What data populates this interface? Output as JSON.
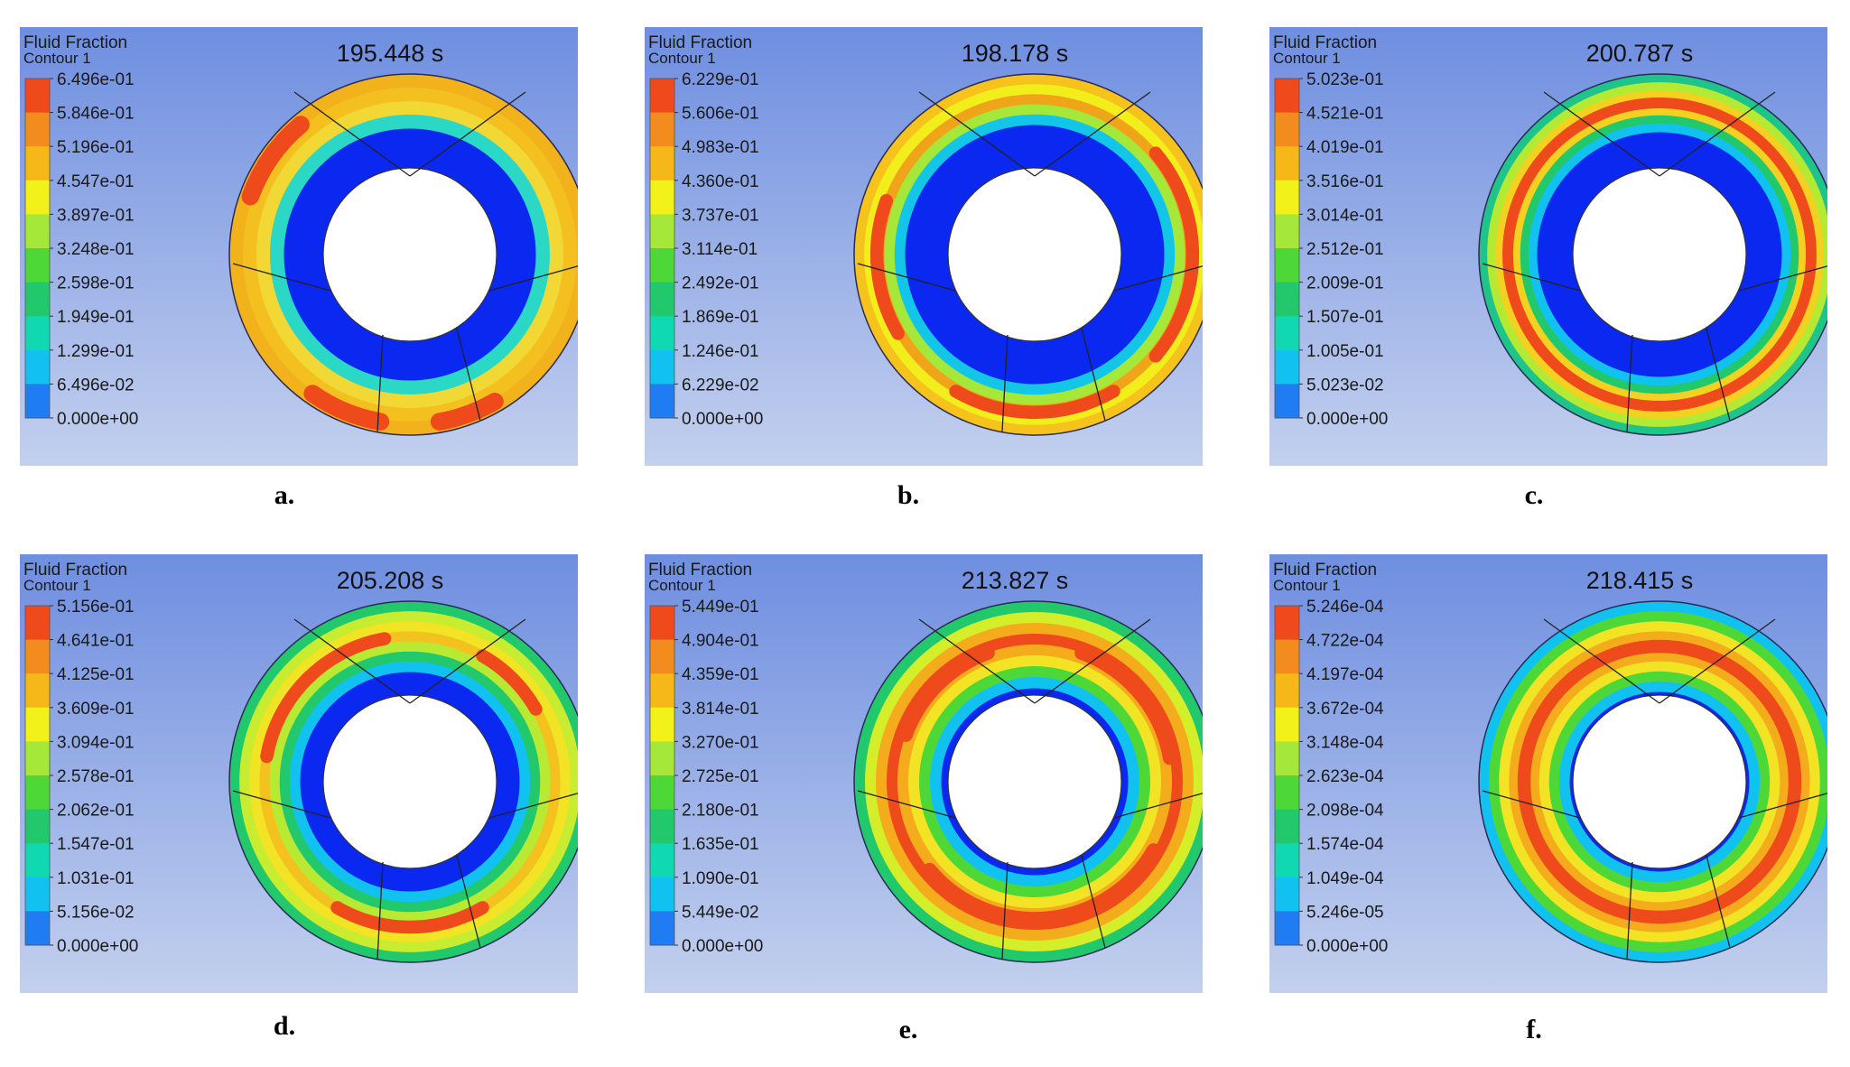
{
  "colors": {
    "bg_top": "#6e8ee0",
    "bg_bottom": "#c3d0ee",
    "scale": [
      "#0a28f0",
      "#1f7cf2",
      "#11c2f0",
      "#10d8b0",
      "#22c96c",
      "#4ed838",
      "#a6e83a",
      "#f2f21a",
      "#f6b818",
      "#f28c1e",
      "#ee4a1c"
    ]
  },
  "panels": [
    {
      "id": "a",
      "caption": "a.",
      "legend_title": "Fluid Fraction",
      "legend_subtitle": "Contour 1",
      "time": "195.448 s",
      "ticks": [
        "6.496e-01",
        "5.846e-01",
        "5.196e-01",
        "4.547e-01",
        "3.897e-01",
        "3.248e-01",
        "2.598e-01",
        "1.949e-01",
        "1.299e-01",
        "6.496e-02",
        "0.000e+00"
      ],
      "ring_colors": [
        "#f2b21c",
        "#f3c020",
        "#f2d834",
        "#2bd8c6"
      ],
      "hotspots_color": "#ee4a1c",
      "inner_band_color": "#2bd8c6"
    },
    {
      "id": "b",
      "caption": "b.",
      "legend_title": "Fluid Fraction",
      "legend_subtitle": "Contour 1",
      "time": "198.178 s",
      "ticks": [
        "6.229e-01",
        "5.606e-01",
        "4.983e-01",
        "4.360e-01",
        "3.737e-01",
        "3.114e-01",
        "2.492e-01",
        "1.869e-01",
        "1.246e-01",
        "6.229e-02",
        "0.000e+00"
      ],
      "ring_colors": [
        "#f6c21c",
        "#f2ee1c",
        "#f0a41a",
        "#a6e83a",
        "#13c6e8"
      ],
      "hotspots_color": "#ee4a1c",
      "inner_band_color": "#13c6e8"
    },
    {
      "id": "c",
      "caption": "c.",
      "legend_title": "Fluid Fraction",
      "legend_subtitle": "Contour 1",
      "time": "200.787 s",
      "ticks": [
        "5.023e-01",
        "4.521e-01",
        "4.019e-01",
        "3.516e-01",
        "3.014e-01",
        "2.512e-01",
        "2.009e-01",
        "1.507e-01",
        "1.005e-01",
        "5.023e-02",
        "0.000e+00"
      ],
      "ring_colors": [
        "#1fc48a",
        "#b4ea34",
        "#f4d020",
        "#ee4a1c",
        "#f4d020",
        "#22c96c",
        "#11c2f0"
      ],
      "hotspots_color": "#ee4a1c",
      "inner_band_color": "#11c2f0"
    },
    {
      "id": "d",
      "caption": "d.",
      "legend_title": "Fluid Fraction",
      "legend_subtitle": "Contour 1",
      "time": "205.208 s",
      "ticks": [
        "5.156e-01",
        "4.641e-01",
        "4.125e-01",
        "3.609e-01",
        "3.094e-01",
        "2.578e-01",
        "2.062e-01",
        "1.547e-01",
        "1.031e-01",
        "5.156e-02",
        "0.000e+00"
      ],
      "ring_colors": [
        "#22c96c",
        "#c8ec30",
        "#f2e424",
        "#f4c21e",
        "#b8ea34",
        "#22c96c",
        "#11c2f0"
      ],
      "hotspots_color": "#ee4a1c",
      "inner_band_color": "#11c2f0"
    },
    {
      "id": "e",
      "caption": "e.",
      "legend_title": "Fluid Fraction",
      "legend_subtitle": "Contour 1",
      "time": "213.827 s",
      "ticks": [
        "5.449e-01",
        "4.904e-01",
        "4.359e-01",
        "3.814e-01",
        "3.270e-01",
        "2.725e-01",
        "2.180e-01",
        "1.635e-01",
        "1.090e-01",
        "5.449e-02",
        "0.000e+00"
      ],
      "ring_colors": [
        "#22c96c",
        "#d4ee2a",
        "#f4ac1c",
        "#ee4a1c",
        "#f4ac1c",
        "#f2e424",
        "#4ed838",
        "#11c2f0"
      ],
      "hotspots_color": "#ee4a1c",
      "inner_band_color": "#11c2f0"
    },
    {
      "id": "f",
      "caption": "f.",
      "legend_title": "Fluid Fraction",
      "legend_subtitle": "Contour 1",
      "time": "218.415 s",
      "ticks": [
        "5.246e-04",
        "4.722e-04",
        "4.197e-04",
        "3.672e-04",
        "3.148e-04",
        "2.623e-04",
        "2.098e-04",
        "1.574e-04",
        "1.049e-04",
        "5.246e-05",
        "0.000e+00"
      ],
      "ring_colors": [
        "#11c2f0",
        "#4ed838",
        "#f2e424",
        "#f4ac1c",
        "#ee4a1c",
        "#f4ac1c",
        "#f2e424",
        "#4ed838",
        "#11c2f0"
      ],
      "hotspots_color": "#ee4a1c",
      "inner_band_color": "#11c2f0"
    }
  ]
}
